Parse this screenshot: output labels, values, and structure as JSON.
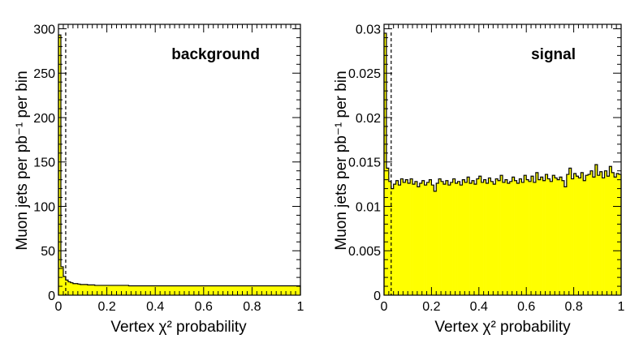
{
  "chart_data": [
    {
      "type": "histogram",
      "label": "background",
      "xlabel": "Vertex χ² probability",
      "ylabel": "Muon jets per pb⁻¹ per bin",
      "xlim": [
        0,
        1
      ],
      "ylim": [
        0,
        305
      ],
      "x_ticks": [
        0,
        0.2,
        0.4,
        0.6,
        0.8,
        1
      ],
      "x_tick_labels": [
        "0",
        "0.2",
        "0.4",
        "0.6",
        "0.8",
        "1"
      ],
      "y_ticks": [
        0,
        50,
        100,
        150,
        200,
        250,
        300
      ],
      "y_tick_labels": [
        "0",
        "50",
        "100",
        "150",
        "200",
        "250",
        "300"
      ],
      "bin_width": 0.01,
      "values": [
        293,
        32,
        21,
        17,
        15,
        14,
        13,
        13,
        12.5,
        12,
        12,
        12,
        11.5,
        11.5,
        11.5,
        11,
        11,
        11,
        11,
        11,
        11,
        11,
        11,
        11,
        11,
        11,
        11,
        11,
        11,
        10.5,
        10.5,
        10.5,
        10.5,
        10.5,
        10.5,
        10.5,
        10.5,
        10.5,
        10.5,
        10.5,
        10.5,
        10.5,
        10.5,
        10.5,
        10.5,
        10.5,
        10.5,
        10.5,
        10.5,
        10.5,
        10.5,
        10.5,
        10.5,
        10.5,
        10.5,
        10.5,
        10.5,
        10.5,
        10.5,
        10.5,
        10.5,
        10.5,
        10.5,
        10.5,
        10.5,
        10.5,
        10.5,
        10.5,
        10.5,
        10.5,
        10.5,
        10.5,
        10.5,
        10.5,
        10.5,
        10.5,
        10.5,
        10.5,
        10.5,
        10.5,
        10.5,
        10.5,
        10.5,
        10.5,
        10.5,
        10.5,
        10.5,
        10.5,
        10.5,
        10.5,
        10.5,
        10.5,
        10.5,
        10.5,
        10.5,
        10.5,
        10.5,
        10.5,
        10.5,
        10.5
      ],
      "cut_line_x": 0.03,
      "fill_color": "#ffff00",
      "line_color": "#000000"
    },
    {
      "type": "histogram",
      "label": "signal",
      "xlabel": "Vertex χ² probability",
      "ylabel": "Muon jets per pb⁻¹ per bin",
      "xlim": [
        0,
        1
      ],
      "ylim": [
        0,
        0.0305
      ],
      "x_ticks": [
        0,
        0.2,
        0.4,
        0.6,
        0.8,
        1
      ],
      "x_tick_labels": [
        "0",
        "0.2",
        "0.4",
        "0.6",
        "0.8",
        "1"
      ],
      "y_ticks": [
        0,
        0.005,
        0.01,
        0.015,
        0.02,
        0.025,
        0.03
      ],
      "y_tick_labels": [
        "0",
        "0.005",
        "0.01",
        "0.015",
        "0.02",
        "0.025",
        "0.03"
      ],
      "bin_width": 0.01,
      "values": [
        0.0295,
        0.0143,
        0.0128,
        0.012,
        0.0125,
        0.0129,
        0.0124,
        0.0131,
        0.0127,
        0.013,
        0.0126,
        0.0131,
        0.0125,
        0.0128,
        0.0122,
        0.0126,
        0.0129,
        0.0124,
        0.0127,
        0.013,
        0.0124,
        0.0117,
        0.0126,
        0.0131,
        0.0128,
        0.0125,
        0.0129,
        0.0124,
        0.0127,
        0.0131,
        0.0126,
        0.0128,
        0.0124,
        0.013,
        0.0127,
        0.0133,
        0.0126,
        0.0129,
        0.0125,
        0.0131,
        0.0134,
        0.0127,
        0.013,
        0.0126,
        0.0132,
        0.0128,
        0.0125,
        0.0131,
        0.0129,
        0.0135,
        0.0127,
        0.013,
        0.0126,
        0.0128,
        0.0133,
        0.0129,
        0.0126,
        0.0131,
        0.0127,
        0.0135,
        0.013,
        0.0128,
        0.0134,
        0.0127,
        0.0138,
        0.013,
        0.0133,
        0.0129,
        0.0136,
        0.0131,
        0.0128,
        0.0135,
        0.0132,
        0.013,
        0.0133,
        0.0129,
        0.0122,
        0.0136,
        0.0143,
        0.0131,
        0.0137,
        0.0134,
        0.0132,
        0.0138,
        0.0129,
        0.0135,
        0.0136,
        0.014,
        0.0133,
        0.0147,
        0.0135,
        0.0139,
        0.0132,
        0.014,
        0.0134,
        0.0145,
        0.0138,
        0.0133,
        0.0137,
        0.0136
      ],
      "cut_line_x": 0.03,
      "fill_color": "#ffff00",
      "line_color": "#000000"
    }
  ]
}
